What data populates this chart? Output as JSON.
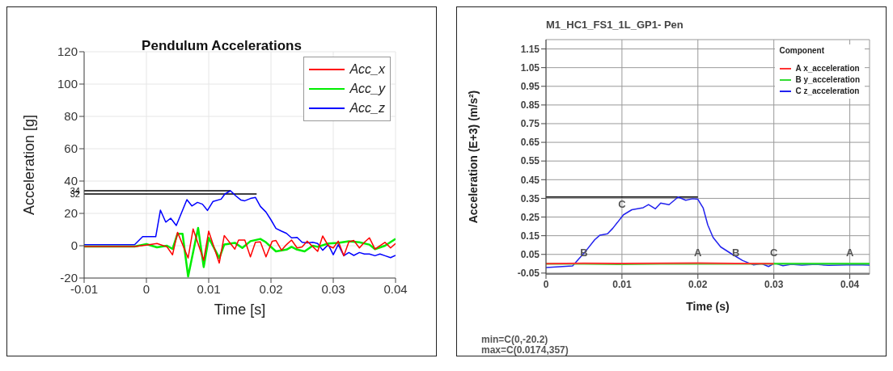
{
  "chart_data": [
    {
      "type": "line",
      "title": "Pendulum Accelerations",
      "xlabel": "Time [s]",
      "ylabel": "Acceleration [g]",
      "xlim": [
        -0.01,
        0.04
      ],
      "xticks": [
        -0.01,
        0,
        0.01,
        0.02,
        0.03,
        0.04
      ],
      "ylim": [
        -20,
        120
      ],
      "yticks": [
        -20,
        0,
        20,
        40,
        60,
        80,
        100,
        120
      ],
      "grid": true,
      "legend": "top right",
      "marker": "none",
      "line_style": "solid",
      "series": [
        {
          "name": "Acc_x",
          "color": "#ff0000",
          "x": [
            -0.01,
            -0.0019,
            0,
            0.0017,
            0.0033,
            0.0042,
            0.005,
            0.0067,
            0.0075,
            0.0092,
            0.01,
            0.0117,
            0.0125,
            0.0142,
            0.0148,
            0.0158,
            0.0167,
            0.0175,
            0.0183,
            0.0192,
            0.0202,
            0.0208,
            0.0217,
            0.0225,
            0.0233,
            0.0242,
            0.025,
            0.0258,
            0.0275,
            0.0283,
            0.0292,
            0.03,
            0.0308,
            0.0317,
            0.0325,
            0.0333,
            0.0342,
            0.035,
            0.0358,
            0.0367,
            0.0383,
            0.0392,
            0.04
          ],
          "values": [
            -0.5,
            -0.5,
            0.4,
            1.4,
            -0.7,
            -5.6,
            8.3,
            -7.6,
            10.4,
            -9,
            9,
            -10.7,
            6.3,
            -2.1,
            3.5,
            3.5,
            -6.9,
            2.1,
            2.4,
            -6.9,
            2.8,
            3.2,
            -2.8,
            0.7,
            3.5,
            -1.4,
            -0.7,
            2.8,
            -3.5,
            6,
            0,
            -1.4,
            2.8,
            -6.2,
            2.4,
            3.2,
            -1.4,
            2.1,
            4.9,
            -2.1,
            2.1,
            -1.4,
            1.4
          ]
        },
        {
          "name": "Acc_y",
          "color": "#00ee00",
          "x": [
            -0.01,
            -0.0019,
            0,
            0.0017,
            0.0033,
            0.0042,
            0.005,
            0.0058,
            0.0067,
            0.0083,
            0.0092,
            0.01,
            0.0117,
            0.0125,
            0.0142,
            0.0154,
            0.0167,
            0.0183,
            0.0192,
            0.0208,
            0.0225,
            0.0233,
            0.0242,
            0.0254,
            0.0267,
            0.0275,
            0.0292,
            0.0308,
            0.0325,
            0.0342,
            0.0358,
            0.0367,
            0.0383,
            0.04
          ],
          "values": [
            -0.5,
            -0.5,
            1,
            -1,
            0,
            -2,
            7.4,
            7.4,
            -19,
            11,
            -13.2,
            4.9,
            -7.6,
            0.7,
            1.8,
            -1.4,
            2.8,
            4.2,
            2.1,
            -3.5,
            -2.4,
            -0.7,
            -2.4,
            -3.5,
            0,
            -0.7,
            1.4,
            1.8,
            2.8,
            2.1,
            0.7,
            -2.1,
            0,
            4.2
          ]
        },
        {
          "name": "Acc_z",
          "color": "#0000ff",
          "x": [
            -0.01,
            -0.0019,
            -0.0006,
            0.0015,
            0.00225,
            0.0031,
            0.0039,
            0.0048,
            0.0065,
            0.0073,
            0.0082,
            0.009,
            0.0098,
            0.0107,
            0.012,
            0.0126,
            0.0135,
            0.0143,
            0.0152,
            0.0158,
            0.0167,
            0.0175,
            0.0183,
            0.0192,
            0.02,
            0.0208,
            0.0217,
            0.0225,
            0.0233,
            0.0242,
            0.025,
            0.0258,
            0.0267,
            0.0275,
            0.0283,
            0.0292,
            0.03,
            0.0308,
            0.0317,
            0.0325,
            0.0333,
            0.0342,
            0.035,
            0.0358,
            0.0367,
            0.0375,
            0.0383,
            0.0392,
            0.04
          ],
          "values": [
            0.6,
            0.6,
            5.6,
            5.6,
            22,
            14.6,
            17,
            12.5,
            28.5,
            24.6,
            26.8,
            25.7,
            21.8,
            27.4,
            28.8,
            32,
            34,
            31,
            28.2,
            27.8,
            29.2,
            29.9,
            24.3,
            20.8,
            16,
            10.7,
            9,
            7.6,
            4.9,
            5.1,
            2.1,
            1.8,
            2.1,
            1.4,
            -2.8,
            0.7,
            -5.6,
            0.7,
            -6.2,
            -4.2,
            -6,
            -4.2,
            -5.1,
            -5.1,
            -6.2,
            -5.1,
            -6.2,
            -7.4,
            -6
          ]
        },
        {
          "color": "#000000",
          "x": [
            -0.01,
            0.0135
          ],
          "values": [
            34,
            34
          ]
        },
        {
          "color": "#000000",
          "x": [
            -0.01,
            0.0177
          ],
          "values": [
            32,
            32
          ]
        }
      ],
      "annotations": [
        {
          "text": "34",
          "x": -0.01,
          "y": 34
        },
        {
          "text": "32",
          "x": -0.01,
          "y": 32
        }
      ]
    },
    {
      "type": "line",
      "title": "M1_HC1_FS1_1L_GP1- Pen",
      "xlabel": "Time (s)",
      "ylabel": "Acceleration (E+3) (m/s²)",
      "legend_title": "Component",
      "xlim": [
        0,
        0.0426
      ],
      "xticks": [
        0,
        0.01,
        0.02,
        0.03,
        0.04
      ],
      "ylim": [
        -0.055,
        1.2
      ],
      "yticks": [
        -0.05,
        0.05,
        0.15,
        0.25,
        0.35,
        0.45,
        0.55,
        0.65,
        0.75,
        0.85,
        0.95,
        1.05,
        1.15
      ],
      "grid": true,
      "legend": "top right",
      "marker": "none",
      "line_style": "solid",
      "series": [
        {
          "name": "A x_acceleration",
          "color": "#ff3333",
          "x": [
            0,
            0.005,
            0.01,
            0.015,
            0.02,
            0.025,
            0.03
          ],
          "values": [
            0,
            0.002,
            0.001,
            0.002,
            0.003,
            0.001,
            0
          ]
        },
        {
          "name": "B y_acceleration",
          "color": "#33dd33",
          "x": [
            0,
            0.005,
            0.01,
            0.015,
            0.02,
            0.025,
            0.03,
            0.035,
            0.04,
            0.0426
          ],
          "values": [
            0,
            0,
            -0.002,
            0,
            0,
            0,
            0,
            0,
            0,
            0
          ]
        },
        {
          "name": "C z_acceleration",
          "color": "#2222ee",
          "x": [
            0,
            0.0035,
            0.0053,
            0.0064,
            0.0071,
            0.0081,
            0.0088,
            0.0102,
            0.0113,
            0.0128,
            0.0135,
            0.0144,
            0.0151,
            0.0162,
            0.0174,
            0.0184,
            0.0193,
            0.02,
            0.0207,
            0.0213,
            0.022,
            0.023,
            0.0245,
            0.0259,
            0.0273,
            0.0284,
            0.0293,
            0.0301,
            0.0312,
            0.0323,
            0.0337,
            0.0355,
            0.0372,
            0.0408,
            0.0426
          ],
          "values": [
            -0.02,
            -0.012,
            0.071,
            0.128,
            0.153,
            0.16,
            0.19,
            0.262,
            0.289,
            0.3,
            0.317,
            0.294,
            0.325,
            0.316,
            0.357,
            0.34,
            0.348,
            0.345,
            0.298,
            0.208,
            0.141,
            0.09,
            0.051,
            0.017,
            -0.006,
            0,
            -0.015,
            0.003,
            -0.011,
            -0.003,
            -0.007,
            -0.003,
            -0.009,
            -0.005,
            -0.007
          ]
        },
        {
          "color": "#000000",
          "x": [
            0,
            0.02
          ],
          "values": [
            0.357,
            0.357
          ]
        }
      ],
      "annotations": [
        {
          "text": "B",
          "x": 0.005,
          "y": 0
        },
        {
          "text": "C",
          "x": 0.01,
          "y": 0.26
        },
        {
          "text": "A",
          "x": 0.02,
          "y": 0
        },
        {
          "text": "B",
          "x": 0.025,
          "y": 0
        },
        {
          "text": "C",
          "x": 0.03,
          "y": 0
        },
        {
          "text": "A",
          "x": 0.04,
          "y": 0
        },
        "min=C(0,-20.2)",
        "max=C(0.0174,357)"
      ]
    }
  ]
}
